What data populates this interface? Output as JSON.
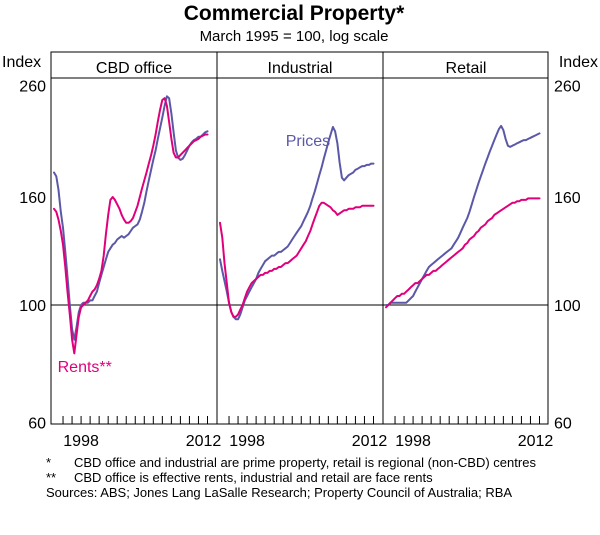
{
  "chart_data": {
    "type": "line",
    "title": "Commercial Property*",
    "subtitle": "March 1995 = 100, log scale",
    "ylabel": "Index",
    "yscale": "log",
    "ylim": [
      60,
      280
    ],
    "yticks": [
      60,
      100,
      160,
      260
    ],
    "xlim": [
      1995.0,
      2012.5
    ],
    "xticks_labelled": [
      1998,
      2012
    ],
    "colors": {
      "Prices": "#5b58a8",
      "Rents": "#e0007c",
      "axis": "#000000"
    },
    "panels": [
      {
        "name": "CBD office",
        "series": [
          {
            "name": "Prices",
            "label": "",
            "color": "#5b58a8",
            "x": [
              1995.0,
              1995.25,
              1995.5,
              1995.75,
              1996.0,
              1996.25,
              1996.5,
              1996.75,
              1997.0,
              1997.25,
              1997.5,
              1997.75,
              1998.0,
              1998.25,
              1998.5,
              1998.75,
              1999.0,
              1999.25,
              1999.5,
              1999.75,
              2000.0,
              2000.25,
              2000.5,
              2000.75,
              2001.0,
              2001.25,
              2001.5,
              2001.75,
              2002.0,
              2002.25,
              2002.5,
              2002.75,
              2003.0,
              2003.25,
              2003.5,
              2003.75,
              2004.0,
              2004.25,
              2004.5,
              2004.75,
              2005.0,
              2005.25,
              2005.5,
              2005.75,
              2006.0,
              2006.25,
              2006.5,
              2006.75,
              2007.0,
              2007.25,
              2007.5,
              2007.75,
              2008.0,
              2008.25,
              2008.5,
              2008.75,
              2009.0,
              2009.25,
              2009.5,
              2009.75,
              2010.0,
              2010.25,
              2010.5,
              2010.75,
              2011.0,
              2011.25,
              2011.5,
              2011.75,
              2012.0
            ],
            "values": [
              178,
              175,
              165,
              150,
              140,
              126,
              113,
              100,
              90,
              86,
              91,
              97,
              100,
              101,
              101,
              101,
              102,
              102,
              104,
              106,
              110,
              114,
              118,
              122,
              126,
              128,
              130,
              131,
              133,
              134,
              135,
              134,
              135,
              136,
              138,
              140,
              141,
              142,
              145,
              150,
              156,
              164,
              172,
              180,
              188,
              196,
              206,
              216,
              226,
              238,
              248,
              246,
              230,
              212,
              196,
              190,
              188,
              189,
              192,
              196,
              200,
              203,
              205,
              206,
              208,
              208,
              210,
              212,
              213
            ]
          },
          {
            "name": "Rents",
            "label": "Rents**",
            "color": "#e0007c",
            "x": [
              1995.0,
              1995.25,
              1995.5,
              1995.75,
              1996.0,
              1996.25,
              1996.5,
              1996.75,
              1997.0,
              1997.25,
              1997.5,
              1997.75,
              1998.0,
              1998.25,
              1998.5,
              1998.75,
              1999.0,
              1999.25,
              1999.5,
              1999.75,
              2000.0,
              2000.25,
              2000.5,
              2000.75,
              2001.0,
              2001.25,
              2001.5,
              2001.75,
              2002.0,
              2002.25,
              2002.5,
              2002.75,
              2003.0,
              2003.25,
              2003.5,
              2003.75,
              2004.0,
              2004.25,
              2004.5,
              2004.75,
              2005.0,
              2005.25,
              2005.5,
              2005.75,
              2006.0,
              2006.25,
              2006.5,
              2006.75,
              2007.0,
              2007.25,
              2007.5,
              2007.75,
              2008.0,
              2008.25,
              2008.5,
              2008.75,
              2009.0,
              2009.25,
              2009.5,
              2009.75,
              2010.0,
              2010.25,
              2010.5,
              2010.75,
              2011.0,
              2011.25,
              2011.5,
              2011.75,
              2012.0
            ],
            "values": [
              152,
              150,
              145,
              138,
              130,
              118,
              106,
              96,
              86,
              81,
              88,
              95,
              99,
              100,
              101,
              102,
              104,
              106,
              107,
              109,
              112,
              116,
              124,
              136,
              148,
              158,
              160,
              158,
              155,
              152,
              148,
              145,
              143,
              143,
              144,
              146,
              150,
              154,
              160,
              166,
              172,
              178,
              185,
              192,
              200,
              210,
              222,
              234,
              244,
              246,
              238,
              222,
              206,
              194,
              190,
              190,
              192,
              194,
              196,
              198,
              200,
              202,
              204,
              205,
              206,
              208,
              209,
              210,
              210
            ]
          }
        ]
      },
      {
        "name": "Industrial",
        "series": [
          {
            "name": "Prices",
            "label": "Prices",
            "color": "#5b58a8",
            "x": [
              1995.0,
              1995.25,
              1995.5,
              1995.75,
              1996.0,
              1996.25,
              1996.5,
              1996.75,
              1997.0,
              1997.25,
              1997.5,
              1997.75,
              1998.0,
              1998.25,
              1998.5,
              1998.75,
              1999.0,
              1999.25,
              1999.5,
              1999.75,
              2000.0,
              2000.25,
              2000.5,
              2000.75,
              2001.0,
              2001.25,
              2001.5,
              2001.75,
              2002.0,
              2002.25,
              2002.5,
              2002.75,
              2003.0,
              2003.25,
              2003.5,
              2003.75,
              2004.0,
              2004.25,
              2004.5,
              2004.75,
              2005.0,
              2005.25,
              2005.5,
              2005.75,
              2006.0,
              2006.25,
              2006.5,
              2006.75,
              2007.0,
              2007.25,
              2007.5,
              2007.75,
              2008.0,
              2008.25,
              2008.5,
              2008.75,
              2009.0,
              2009.25,
              2009.5,
              2009.75,
              2010.0,
              2010.25,
              2010.5,
              2010.75,
              2011.0,
              2011.25,
              2011.5,
              2011.75,
              2012.0
            ],
            "values": [
              122,
              116,
              111,
              106,
              101,
              97,
              95,
              94,
              94,
              96,
              99,
              102,
              104,
              106,
              108,
              110,
              112,
              115,
              117,
              119,
              121,
              122,
              123,
              124,
              124,
              125,
              126,
              126,
              127,
              128,
              129,
              131,
              133,
              135,
              137,
              139,
              141,
              144,
              147,
              150,
              154,
              159,
              164,
              170,
              176,
              182,
              189,
              196,
              203,
              210,
              217,
              213,
              202,
              186,
              174,
              172,
              174,
              176,
              177,
              178,
              180,
              181,
              182,
              183,
              183,
              184,
              184,
              185,
              185
            ]
          },
          {
            "name": "Rents",
            "label": "",
            "color": "#e0007c",
            "x": [
              1995.0,
              1995.25,
              1995.5,
              1995.75,
              1996.0,
              1996.25,
              1996.5,
              1996.75,
              1997.0,
              1997.25,
              1997.5,
              1997.75,
              1998.0,
              1998.25,
              1998.5,
              1998.75,
              1999.0,
              1999.25,
              1999.5,
              1999.75,
              2000.0,
              2000.25,
              2000.5,
              2000.75,
              2001.0,
              2001.25,
              2001.5,
              2001.75,
              2002.0,
              2002.25,
              2002.5,
              2002.75,
              2003.0,
              2003.25,
              2003.5,
              2003.75,
              2004.0,
              2004.25,
              2004.5,
              2004.75,
              2005.0,
              2005.25,
              2005.5,
              2005.75,
              2006.0,
              2006.25,
              2006.5,
              2006.75,
              2007.0,
              2007.25,
              2007.5,
              2007.75,
              2008.0,
              2008.25,
              2008.5,
              2008.75,
              2009.0,
              2009.25,
              2009.5,
              2009.75,
              2010.0,
              2010.25,
              2010.5,
              2010.75,
              2011.0,
              2011.25,
              2011.5,
              2011.75,
              2012.0
            ],
            "values": [
              143,
              134,
              120,
              110,
              101,
              97,
              95,
              95,
              96,
              98,
              100,
              103,
              106,
              108,
              110,
              111,
              112,
              113,
              114,
              114,
              115,
              115,
              116,
              116,
              117,
              117,
              118,
              118,
              119,
              120,
              120,
              121,
              122,
              123,
              124,
              126,
              128,
              130,
              132,
              135,
              138,
              142,
              146,
              150,
              154,
              156,
              156,
              155,
              154,
              153,
              151,
              150,
              148,
              149,
              150,
              151,
              151,
              152,
              152,
              152,
              153,
              153,
              153,
              154,
              154,
              154,
              154,
              154,
              154
            ]
          }
        ]
      },
      {
        "name": "Retail",
        "series": [
          {
            "name": "Prices",
            "label": "",
            "color": "#5b58a8",
            "x": [
              1995.0,
              1995.25,
              1995.5,
              1995.75,
              1996.0,
              1996.25,
              1996.5,
              1996.75,
              1997.0,
              1997.25,
              1997.5,
              1997.75,
              1998.0,
              1998.25,
              1998.5,
              1998.75,
              1999.0,
              1999.25,
              1999.5,
              1999.75,
              2000.0,
              2000.25,
              2000.5,
              2000.75,
              2001.0,
              2001.25,
              2001.5,
              2001.75,
              2002.0,
              2002.25,
              2002.5,
              2002.75,
              2003.0,
              2003.25,
              2003.5,
              2003.75,
              2004.0,
              2004.25,
              2004.5,
              2004.75,
              2005.0,
              2005.25,
              2005.5,
              2005.75,
              2006.0,
              2006.25,
              2006.5,
              2006.75,
              2007.0,
              2007.25,
              2007.5,
              2007.75,
              2008.0,
              2008.25,
              2008.5,
              2008.75,
              2009.0,
              2009.25,
              2009.5,
              2009.75,
              2010.0,
              2010.25,
              2010.5,
              2010.75,
              2011.0,
              2011.25,
              2011.5,
              2011.75,
              2012.0
            ],
            "values": [
              100,
              100,
              101,
              101,
              101,
              101,
              101,
              101,
              101,
              101,
              102,
              103,
              104,
              106,
              108,
              110,
              112,
              114,
              116,
              118,
              119,
              120,
              121,
              122,
              123,
              124,
              125,
              126,
              127,
              128,
              130,
              132,
              134,
              137,
              140,
              143,
              146,
              150,
              155,
              160,
              165,
              170,
              175,
              180,
              185,
              190,
              195,
              200,
              205,
              210,
              215,
              218,
              214,
              206,
              200,
              199,
              200,
              201,
              202,
              203,
              204,
              205,
              205,
              206,
              207,
              208,
              209,
              210,
              211
            ]
          },
          {
            "name": "Rents",
            "label": "",
            "color": "#e0007c",
            "x": [
              1995.0,
              1995.25,
              1995.5,
              1995.75,
              1996.0,
              1996.25,
              1996.5,
              1996.75,
              1997.0,
              1997.25,
              1997.5,
              1997.75,
              1998.0,
              1998.25,
              1998.5,
              1998.75,
              1999.0,
              1999.25,
              1999.5,
              1999.75,
              2000.0,
              2000.25,
              2000.5,
              2000.75,
              2001.0,
              2001.25,
              2001.5,
              2001.75,
              2002.0,
              2002.25,
              2002.5,
              2002.75,
              2003.0,
              2003.25,
              2003.5,
              2003.75,
              2004.0,
              2004.25,
              2004.5,
              2004.75,
              2005.0,
              2005.25,
              2005.5,
              2005.75,
              2006.0,
              2006.25,
              2006.5,
              2006.75,
              2007.0,
              2007.25,
              2007.5,
              2007.75,
              2008.0,
              2008.25,
              2008.5,
              2008.75,
              2009.0,
              2009.25,
              2009.5,
              2009.75,
              2010.0,
              2010.25,
              2010.5,
              2010.75,
              2011.0,
              2011.25,
              2011.5,
              2011.75,
              2012.0
            ],
            "values": [
              99,
              100,
              101,
              102,
              103,
              104,
              104,
              105,
              105,
              106,
              107,
              108,
              109,
              110,
              110,
              111,
              112,
              113,
              114,
              114,
              115,
              116,
              116,
              117,
              118,
              119,
              120,
              121,
              122,
              123,
              124,
              125,
              126,
              127,
              128,
              130,
              131,
              133,
              134,
              135,
              137,
              138,
              140,
              141,
              142,
              144,
              145,
              146,
              148,
              149,
              150,
              151,
              152,
              153,
              154,
              155,
              156,
              156,
              157,
              157,
              158,
              158,
              158,
              159,
              159,
              159,
              159,
              159,
              159
            ]
          }
        ]
      }
    ]
  },
  "footnotes": {
    "note1_mark": "*",
    "note1_text": "CBD office and industrial are prime property, retail is regional (non-CBD) centres",
    "note2_mark": "**",
    "note2_text": "CBD office is effective rents, industrial and retail are face rents",
    "sources": "Sources: ABS; Jones Lang LaSalle Research; Property Council of Australia; RBA"
  }
}
